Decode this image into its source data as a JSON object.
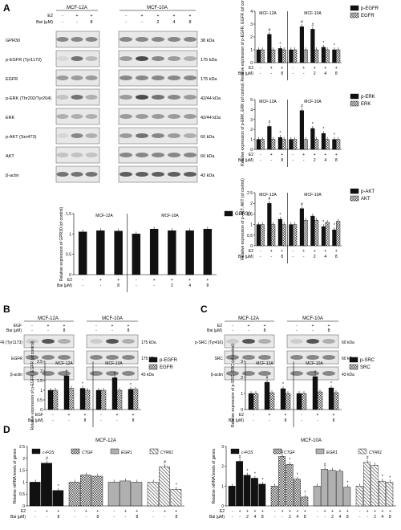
{
  "panels": {
    "A": "A",
    "B": "B",
    "C": "C",
    "D": "D"
  },
  "cells": {
    "mcf12a": "MCF-12A",
    "mcf10a": "MCF-10A"
  },
  "treat": {
    "e2": "E2",
    "egf": "EGF",
    "bai": "Bai (µM)"
  },
  "blots": {
    "A": {
      "rows": [
        {
          "name": "GPR30",
          "kda": "38 kDa"
        },
        {
          "name": "p-EGFR (Tyr1173)",
          "kda": "175 kDa"
        },
        {
          "name": "EGFR",
          "kda": "175 kDa"
        },
        {
          "name": "p-ERK (Thr202/Tyr204)",
          "kda": "42/44 kDa"
        },
        {
          "name": "ERK",
          "kda": "42/44 kDa"
        },
        {
          "name": "p-AKT (Ser473)",
          "kda": "60 kDa"
        },
        {
          "name": "AKT",
          "kda": "60 kDa"
        },
        {
          "name": "β-actin",
          "kda": "43 kDa"
        }
      ]
    },
    "B": {
      "rows": [
        {
          "name": "p-EGFR (Tyr1173)",
          "kda": "175 kDa"
        },
        {
          "name": "EGFR",
          "kda": "175 kDa"
        },
        {
          "name": "β-actin",
          "kda": "43 kDa"
        }
      ]
    },
    "C": {
      "rows": [
        {
          "name": "p-SRC (Tyr416)",
          "kda": "60 kDa"
        },
        {
          "name": "SRC",
          "kda": "60 kDa"
        },
        {
          "name": "β-actin",
          "kda": "43 kDa"
        }
      ]
    }
  },
  "lanes": {
    "A": {
      "mcf12a": {
        "e2": [
          "-",
          "+",
          "+"
        ],
        "bai": [
          "-",
          "-",
          "8"
        ]
      },
      "mcf10a": {
        "e2": [
          "-",
          "+",
          "+",
          "+",
          "+"
        ],
        "bai": [
          "-",
          "-",
          "2",
          "4",
          "8"
        ]
      }
    },
    "pair": {
      "stim": [
        "-",
        "+",
        "+"
      ],
      "bai": [
        "-",
        "-",
        "8"
      ]
    }
  },
  "colors": {
    "solid": "#111111",
    "hatch": "#555555",
    "gray": "#aaaaaa"
  },
  "chart_data": [
    {
      "id": "A1",
      "type": "bar",
      "ylabel": "Relative expression of p-EGFR, EGFR (of control)",
      "ylim": [
        0,
        4
      ],
      "yticks": [
        0,
        1,
        2,
        3,
        4
      ],
      "series": [
        {
          "name": "p-EGFR",
          "values": [
            1,
            2.2,
            1.1,
            1,
            2.8,
            2.6,
            1.2,
            1.0
          ]
        },
        {
          "name": "EGFR",
          "values": [
            1,
            1,
            1,
            1,
            1,
            1,
            1,
            1
          ]
        }
      ],
      "marks": [
        "",
        "#",
        "*",
        "",
        "#",
        "#",
        "*",
        "*"
      ]
    },
    {
      "id": "A2",
      "type": "bar",
      "ylabel": "Relative expression of p-ERK, ERK (of control)",
      "ylim": [
        0,
        5
      ],
      "yticks": [
        0,
        1,
        2,
        3,
        4,
        5
      ],
      "series": [
        {
          "name": "p-ERK",
          "values": [
            1,
            2.3,
            1.2,
            1,
            3.9,
            2.1,
            1.6,
            1.0
          ]
        },
        {
          "name": "ERK",
          "values": [
            1,
            1,
            1,
            1,
            1,
            1,
            1,
            1
          ]
        }
      ],
      "marks": [
        "",
        "#",
        "*",
        "",
        "#",
        "*",
        "*",
        "*"
      ]
    },
    {
      "id": "A3",
      "type": "bar",
      "ylabel": "Relative expression of p-AKT, AKT (of control)",
      "ylim": [
        0,
        2.5
      ],
      "yticks": [
        0,
        0.5,
        1,
        1.5,
        2,
        2.5
      ],
      "series": [
        {
          "name": "p-AKT",
          "values": [
            1,
            2.0,
            1.25,
            1,
            1.75,
            1.4,
            0.9,
            0.75
          ]
        },
        {
          "name": "AKT",
          "values": [
            1,
            1,
            1,
            1,
            1.2,
            1.2,
            1.1,
            1.15
          ]
        }
      ],
      "marks": [
        "",
        "#",
        "*",
        "",
        "#",
        "",
        "*",
        "*"
      ]
    },
    {
      "id": "A4",
      "type": "bar",
      "ylabel": "Relative expression of GPR30 (of control)",
      "ylim": [
        0,
        1.5
      ],
      "yticks": [
        0,
        0.5,
        1,
        1.5
      ],
      "series": [
        {
          "name": "GPR30",
          "values": [
            1.05,
            1.08,
            1.07,
            1.0,
            1.12,
            1.08,
            1.08,
            1.12
          ]
        }
      ],
      "marks": [
        "",
        "",
        "",
        "",
        "",
        "",
        "",
        ""
      ]
    },
    {
      "id": "B1",
      "type": "bar",
      "ylabel": "Relative expression of p-EGFR, EGFR (of control)",
      "ylim": [
        0,
        2.5
      ],
      "yticks": [
        0,
        0.5,
        1,
        1.5,
        2,
        2.5
      ],
      "series": [
        {
          "name": "p-EGFR",
          "values": [
            1,
            1.75,
            1.1,
            1,
            1.65,
            1.05
          ]
        },
        {
          "name": "EGFR",
          "values": [
            1,
            1.1,
            1.0,
            1,
            1.0,
            1.05
          ]
        }
      ],
      "marks": [
        "",
        "#",
        "*",
        "",
        "#",
        "*"
      ]
    },
    {
      "id": "C1",
      "type": "bar",
      "ylabel": "Relative expression of p-SRC, SRC (of control)",
      "ylim": [
        0,
        3
      ],
      "yticks": [
        0,
        1,
        2,
        3
      ],
      "series": [
        {
          "name": "p-SRC",
          "values": [
            1,
            1.7,
            1.3,
            1,
            2.05,
            1.35
          ]
        },
        {
          "name": "SRC",
          "values": [
            1,
            1.05,
            1.0,
            1,
            1.1,
            1.05
          ]
        }
      ],
      "marks": [
        "",
        "#",
        "*",
        "",
        "#",
        "*"
      ]
    },
    {
      "id": "D1",
      "type": "bar",
      "ylabel": "Relative mRNA levels of genes",
      "ylim": [
        0,
        2.5
      ],
      "yticks": [
        0,
        0.5,
        1,
        1.5,
        2,
        2.5
      ],
      "series": [
        {
          "name": "c-FOS",
          "values": [
            1,
            1.8,
            0.65
          ]
        },
        {
          "name": "CTGF",
          "values": [
            1,
            1.3,
            1.25
          ]
        },
        {
          "name": "EGR1",
          "values": [
            1,
            1.05,
            1.0
          ]
        },
        {
          "name": "CYR61",
          "values": [
            1,
            1.65,
            0.7
          ]
        }
      ],
      "marks": [
        [
          "",
          "#",
          "*"
        ],
        [
          "",
          "",
          ""
        ],
        [
          "",
          "",
          ""
        ],
        [
          "",
          "#",
          "*"
        ]
      ]
    },
    {
      "id": "D2",
      "type": "bar",
      "ylabel": "Relative mRNA levels of genes",
      "ylim": [
        0,
        3
      ],
      "yticks": [
        0,
        1,
        2,
        3
      ],
      "series": [
        {
          "name": "c-FOS",
          "values": [
            1,
            2.25,
            1.55,
            1.4,
            1.1
          ]
        },
        {
          "name": "CTGF",
          "values": [
            1,
            2.5,
            2.1,
            1.35,
            0.45
          ]
        },
        {
          "name": "EGR1",
          "values": [
            1,
            1.85,
            1.8,
            1.75,
            0.95
          ]
        },
        {
          "name": "CYR61",
          "values": [
            1,
            2.2,
            2.05,
            1.25,
            1.2
          ]
        }
      ],
      "marks": [
        [
          "",
          "#",
          "*",
          "*",
          "*"
        ],
        [
          "",
          "#",
          "*",
          "*",
          "*"
        ],
        [
          "",
          "#",
          "",
          "",
          "*"
        ],
        [
          "",
          "#",
          "",
          "*",
          "*"
        ]
      ]
    }
  ]
}
